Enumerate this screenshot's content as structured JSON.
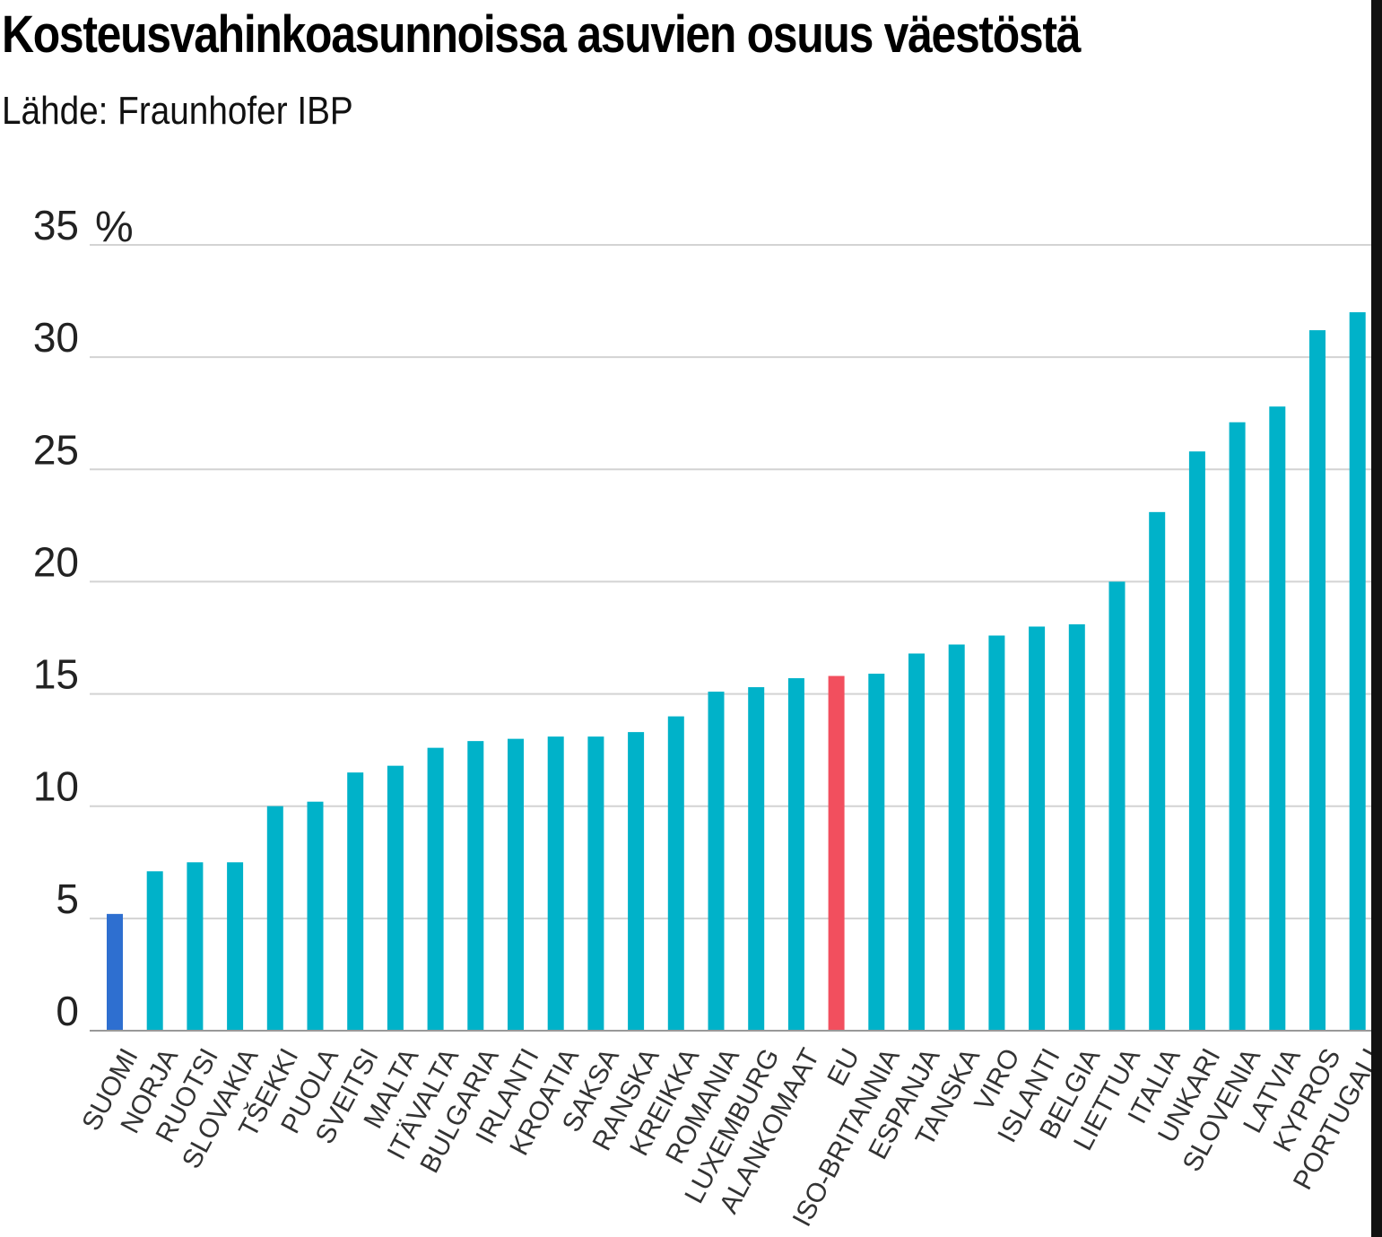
{
  "colors": {
    "bar": "#00b2c9",
    "highlight_finland": "#2e6fd0",
    "highlight_eu": "#f24f5e",
    "gridline": "#d3d3d3",
    "axis": "#999999"
  },
  "chart_data": {
    "type": "bar",
    "title": "Kosteusvahinkoasunnoissa asuvien osuus väestöstä",
    "subtitle": "Lähde: Fraunhofer IBP",
    "unit": "%",
    "ylim": [
      0,
      35
    ],
    "yticks": [
      0,
      5,
      10,
      15,
      20,
      25,
      30,
      35
    ],
    "grid": true,
    "categories": [
      "SUOMI",
      "NORJA",
      "RUOTSI",
      "SLOVAKIA",
      "TŠEKKI",
      "PUOLA",
      "SVEITSI",
      "MALTA",
      "ITÄVALTA",
      "BULGARIA",
      "IRLANTI",
      "KROATIA",
      "SAKSA",
      "RANSKA",
      "KREIKKA",
      "ROMANIA",
      "LUXEMBURG",
      "ALANKOMAAT",
      "EU",
      "ISO-BRITANNIA",
      "ESPANJA",
      "TANSKA",
      "VIRO",
      "ISLANTI",
      "BELGIA",
      "LIETTUA",
      "ITALIA",
      "UNKARI",
      "SLOVENIA",
      "LATVIA",
      "KYPROS",
      "PORTUGALI"
    ],
    "values": [
      5.2,
      7.1,
      7.5,
      7.5,
      10.0,
      10.2,
      11.5,
      11.8,
      12.6,
      12.9,
      13.0,
      13.1,
      13.1,
      13.3,
      14.0,
      15.1,
      15.3,
      15.7,
      15.8,
      15.9,
      16.8,
      17.2,
      17.6,
      18.0,
      18.1,
      20.0,
      23.1,
      25.8,
      27.1,
      27.8,
      31.2,
      32.0
    ],
    "highlight": {
      "SUOMI": "#2e6fd0",
      "EU": "#f24f5e"
    }
  }
}
